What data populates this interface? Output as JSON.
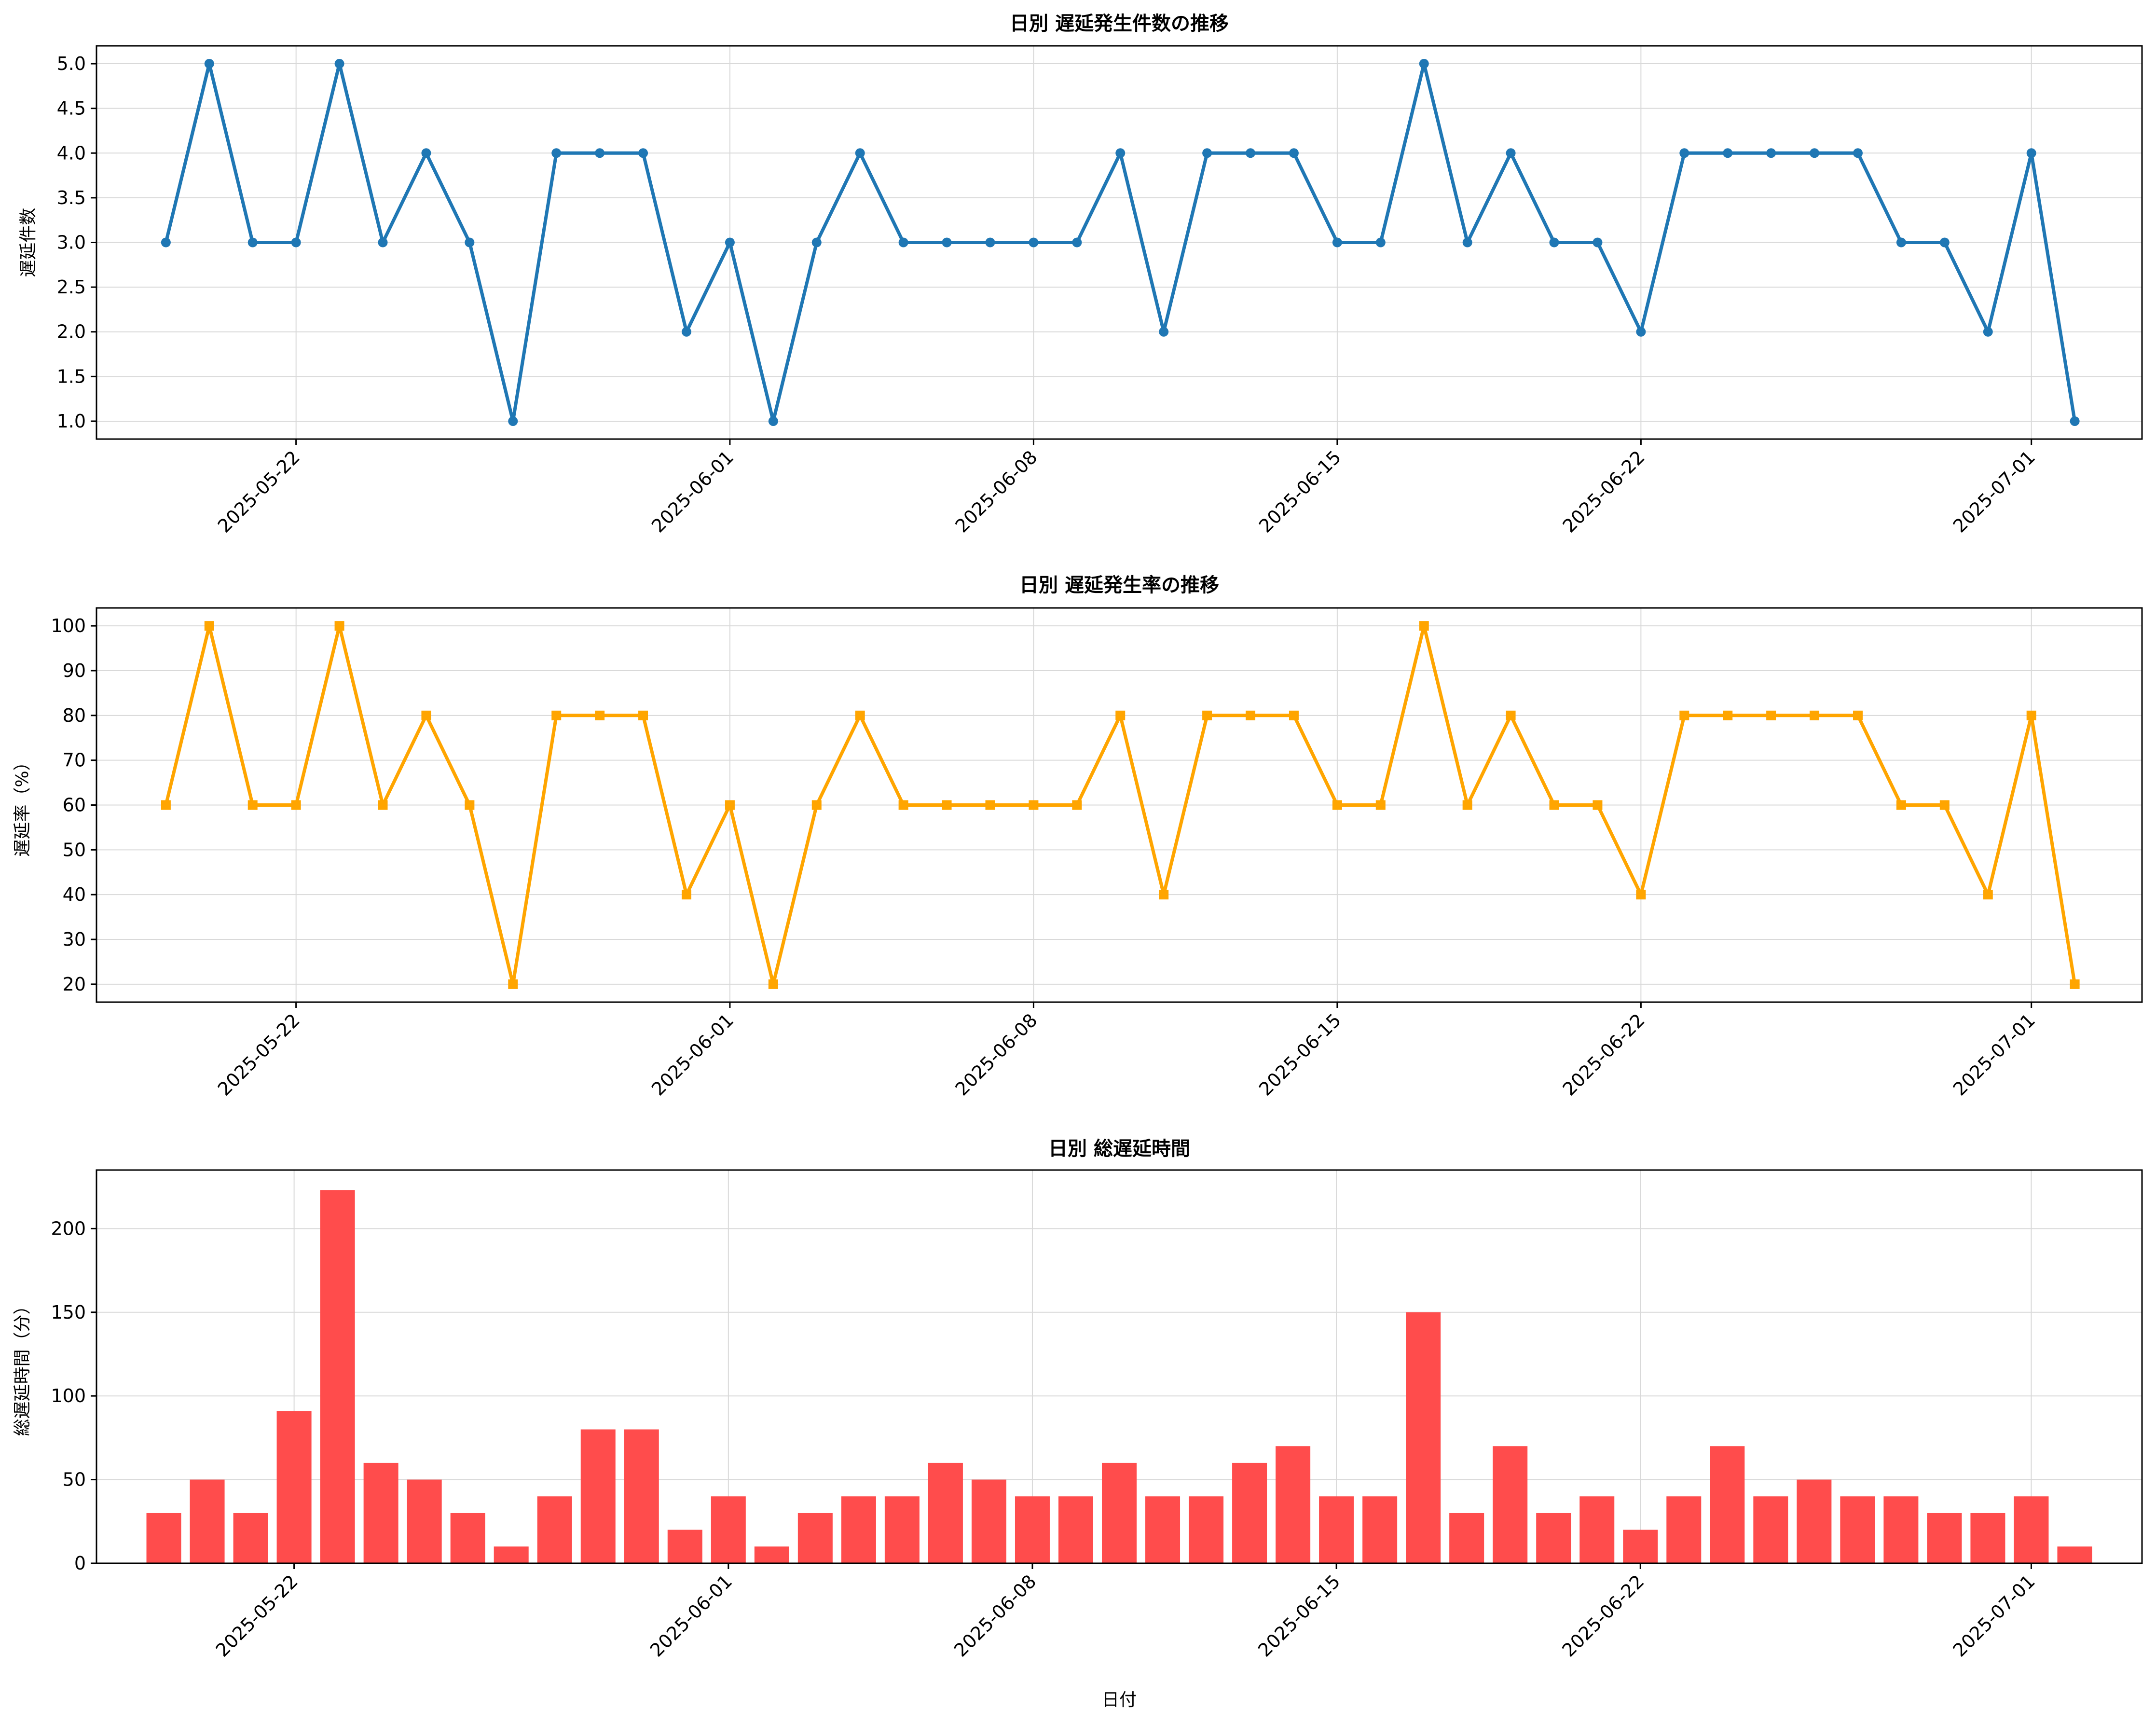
{
  "figure": {
    "xlabel": "日付"
  },
  "chart_data": [
    {
      "type": "line",
      "title": "日別 遅延発生件数の推移",
      "xlabel": "",
      "ylabel": "遅延件数",
      "color": "#1f77b4",
      "marker": "circle",
      "x_start": "2025-05-19",
      "x_end": "2025-07-02",
      "xticks": [
        "2025-05-22",
        "2025-06-01",
        "2025-06-08",
        "2025-06-15",
        "2025-06-22",
        "2025-07-01"
      ],
      "yticks": [
        "1.0",
        "1.5",
        "2.0",
        "2.5",
        "3.0",
        "3.5",
        "4.0",
        "4.5",
        "5.0"
      ],
      "ylim": [
        0.8,
        5.2
      ],
      "grid": true,
      "series": [
        {
          "name": "",
          "values": [
            3,
            5,
            3,
            3,
            5,
            3,
            4,
            3,
            1,
            4,
            4,
            4,
            2,
            3,
            1,
            3,
            4,
            3,
            3,
            3,
            3,
            3,
            4,
            2,
            4,
            4,
            4,
            3,
            3,
            5,
            3,
            4,
            3,
            3,
            2,
            4,
            4,
            4,
            4,
            4,
            3,
            3,
            2,
            4,
            1
          ]
        }
      ]
    },
    {
      "type": "line",
      "title": "日別 遅延発生率の推移",
      "xlabel": "",
      "ylabel": "遅延率（%）",
      "color": "#ffa500",
      "marker": "square",
      "x_start": "2025-05-19",
      "x_end": "2025-07-02",
      "xticks": [
        "2025-05-22",
        "2025-06-01",
        "2025-06-08",
        "2025-06-15",
        "2025-06-22",
        "2025-07-01"
      ],
      "yticks": [
        "20",
        "30",
        "40",
        "50",
        "60",
        "70",
        "80",
        "90",
        "100"
      ],
      "ylim": [
        16,
        104
      ],
      "grid": true,
      "series": [
        {
          "name": "",
          "values": [
            60,
            100,
            60,
            60,
            100,
            60,
            80,
            60,
            20,
            80,
            80,
            80,
            40,
            60,
            20,
            60,
            80,
            60,
            60,
            60,
            60,
            60,
            80,
            40,
            80,
            80,
            80,
            60,
            60,
            100,
            60,
            80,
            60,
            60,
            40,
            80,
            80,
            80,
            80,
            80,
            60,
            60,
            40,
            80,
            20
          ]
        }
      ]
    },
    {
      "type": "bar",
      "title": "日別 総遅延時間",
      "xlabel": "日付",
      "ylabel": "総遅延時間（分）",
      "color": "#ff4c4c",
      "x_start": "2025-05-19",
      "x_end": "2025-07-02",
      "xticks": [
        "2025-05-22",
        "2025-06-01",
        "2025-06-08",
        "2025-06-15",
        "2025-06-22",
        "2025-07-01"
      ],
      "yticks": [
        "0",
        "50",
        "100",
        "150",
        "200"
      ],
      "ylim": [
        0,
        235
      ],
      "grid": true,
      "series": [
        {
          "name": "",
          "values": [
            30,
            50,
            30,
            91,
            223,
            60,
            50,
            30,
            10,
            40,
            80,
            80,
            20,
            40,
            10,
            30,
            40,
            40,
            60,
            50,
            40,
            40,
            60,
            40,
            40,
            60,
            70,
            40,
            40,
            150,
            30,
            70,
            30,
            40,
            20,
            40,
            70,
            40,
            50,
            40,
            40,
            30,
            30,
            40,
            10
          ]
        }
      ]
    }
  ]
}
